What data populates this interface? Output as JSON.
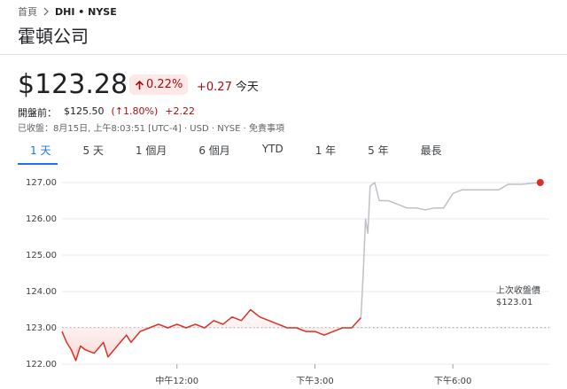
{
  "breadcrumb": {
    "home": "首頁",
    "ticker": "DHI • NYSE"
  },
  "name": "霍頓公司",
  "price": "$123.28",
  "change_percent": "0.22%",
  "change": "+0.27",
  "period": "今天",
  "premarket": {
    "label": "開盤前：",
    "price": "$125.50",
    "percent": "(↑1.80%)",
    "change": "+2.22"
  },
  "status": "已收盤：8月15日, 上午8:03:51 [UTC-4] · USD · NYSE · 免責事項",
  "tabs": [
    "1 天",
    "5 天",
    "1 個月",
    "6 個月",
    "YTD",
    "1 年",
    "5 年",
    "最長"
  ],
  "chart_data": {
    "type": "line",
    "xlim": [
      9.5,
      20
    ],
    "ylim": [
      122,
      127.3
    ],
    "xticks": [
      {
        "value": 12,
        "label": "中午12:00"
      },
      {
        "value": 15,
        "label": "下午3:00"
      },
      {
        "value": 18,
        "label": "下午6:00"
      }
    ],
    "yticks": [
      {
        "value": 122,
        "label": "122.00"
      },
      {
        "value": 123,
        "label": "123.00"
      },
      {
        "value": 124,
        "label": "124.00"
      },
      {
        "value": 125,
        "label": "125.00"
      },
      {
        "value": 126,
        "label": "126.00"
      },
      {
        "value": 127,
        "label": "127.00"
      }
    ],
    "grid": true,
    "previous_close": {
      "label": "上次收盤價",
      "value": 123.01,
      "value_label": "$123.01"
    },
    "series": [
      {
        "color": "#d93025",
        "x": [
          9.5,
          9.6,
          9.7,
          9.8,
          9.9,
          10.0,
          10.2,
          10.4,
          10.5,
          10.7,
          10.9,
          11.0,
          11.2,
          11.4,
          11.6,
          11.8,
          12.0,
          12.2,
          12.4,
          12.6,
          12.8,
          13.0,
          13.2,
          13.4,
          13.6,
          13.8,
          14.0,
          14.2,
          14.4,
          14.6,
          14.8,
          15.0,
          15.2,
          15.4,
          15.6,
          15.8,
          16.0
        ],
        "values": [
          122.9,
          122.6,
          122.4,
          122.1,
          122.5,
          122.4,
          122.3,
          122.6,
          122.2,
          122.5,
          122.8,
          122.6,
          122.9,
          123.0,
          123.1,
          123.0,
          123.1,
          123.0,
          123.1,
          123.0,
          123.2,
          123.1,
          123.3,
          123.2,
          123.5,
          123.3,
          123.2,
          123.1,
          123.0,
          123.0,
          122.9,
          122.9,
          122.8,
          122.9,
          123.0,
          123.0,
          123.28
        ]
      },
      {
        "color": "#bdc1c6",
        "x": [
          16.0,
          16.05,
          16.1,
          16.15,
          16.2,
          16.3,
          16.4,
          16.6,
          16.8,
          17.0,
          17.2,
          17.4,
          17.6,
          17.8,
          18.0,
          18.2,
          18.6,
          19.0,
          19.2,
          19.5,
          19.9
        ],
        "values": [
          123.28,
          124.5,
          126.0,
          125.6,
          126.9,
          127.0,
          126.5,
          126.5,
          126.4,
          126.3,
          126.3,
          126.25,
          126.3,
          126.3,
          126.7,
          126.8,
          126.8,
          126.8,
          126.95,
          126.95,
          127.0
        ]
      }
    ],
    "marker_color": "#d93025"
  }
}
